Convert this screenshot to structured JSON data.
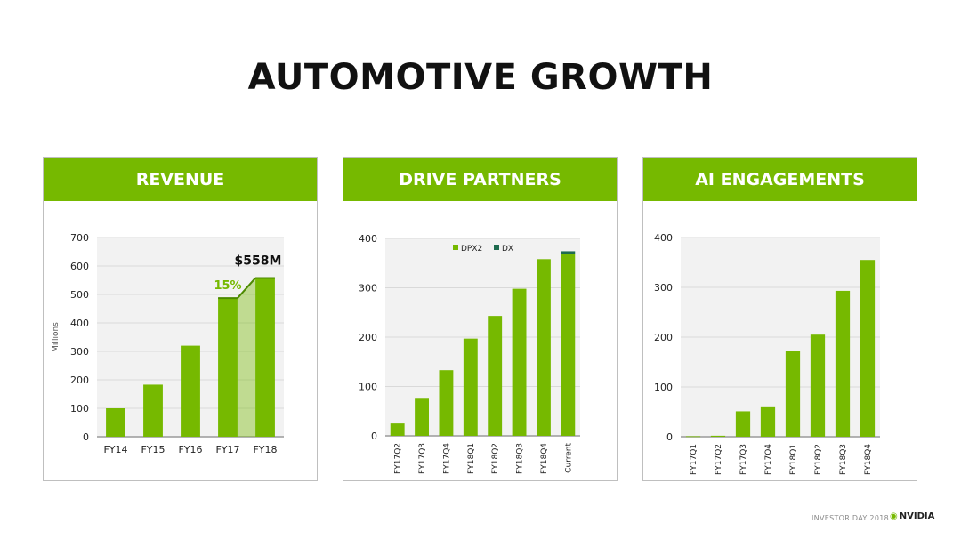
{
  "slide": {
    "title": "AUTOMOTIVE GROWTH",
    "footer_text": "INVESTOR DAY 2018",
    "footer_brand": "NVIDIA"
  },
  "colors": {
    "accent": "#76b900",
    "dark_series": "#1e6b4f",
    "plot_bg": "#f2f2f2",
    "gridline": "#d9d9d9"
  },
  "chart_data": [
    {
      "type": "bar",
      "title": "REVENUE",
      "ylabel": "Millions",
      "categories": [
        "FY14",
        "FY15",
        "FY16",
        "FY17",
        "FY18"
      ],
      "values": [
        100,
        183,
        320,
        487,
        558
      ],
      "ylim": [
        0,
        700
      ],
      "yticks": [
        0,
        100,
        200,
        300,
        400,
        500,
        600,
        700
      ],
      "annotations": {
        "growth": "15%",
        "latest": "$558M"
      },
      "grid": true
    },
    {
      "type": "bar",
      "title": "DRIVE PARTNERS",
      "categories": [
        "FY17Q2",
        "FY17Q3",
        "FY17Q4",
        "FY18Q1",
        "FY18Q2",
        "FY18Q3",
        "FY18Q4",
        "Current"
      ],
      "series": [
        {
          "name": "DPX2",
          "values": [
            25,
            77,
            133,
            197,
            243,
            298,
            358,
            369
          ]
        },
        {
          "name": "DX",
          "values": [
            0,
            0,
            0,
            0,
            0,
            0,
            0,
            5
          ]
        }
      ],
      "stacked": true,
      "ylim": [
        0,
        400
      ],
      "yticks": [
        0,
        100,
        200,
        300,
        400
      ],
      "legend": "top-center",
      "grid": true
    },
    {
      "type": "bar",
      "title": "AI ENGAGEMENTS",
      "categories": [
        "FY17Q1",
        "FY17Q2",
        "FY17Q3",
        "FY17Q4",
        "FY18Q1",
        "FY18Q2",
        "FY18Q3",
        "FY18Q4"
      ],
      "values": [
        1,
        2,
        51,
        61,
        173,
        205,
        293,
        355
      ],
      "ylim": [
        0,
        400
      ],
      "yticks": [
        0,
        100,
        200,
        300,
        400
      ],
      "grid": true
    }
  ]
}
